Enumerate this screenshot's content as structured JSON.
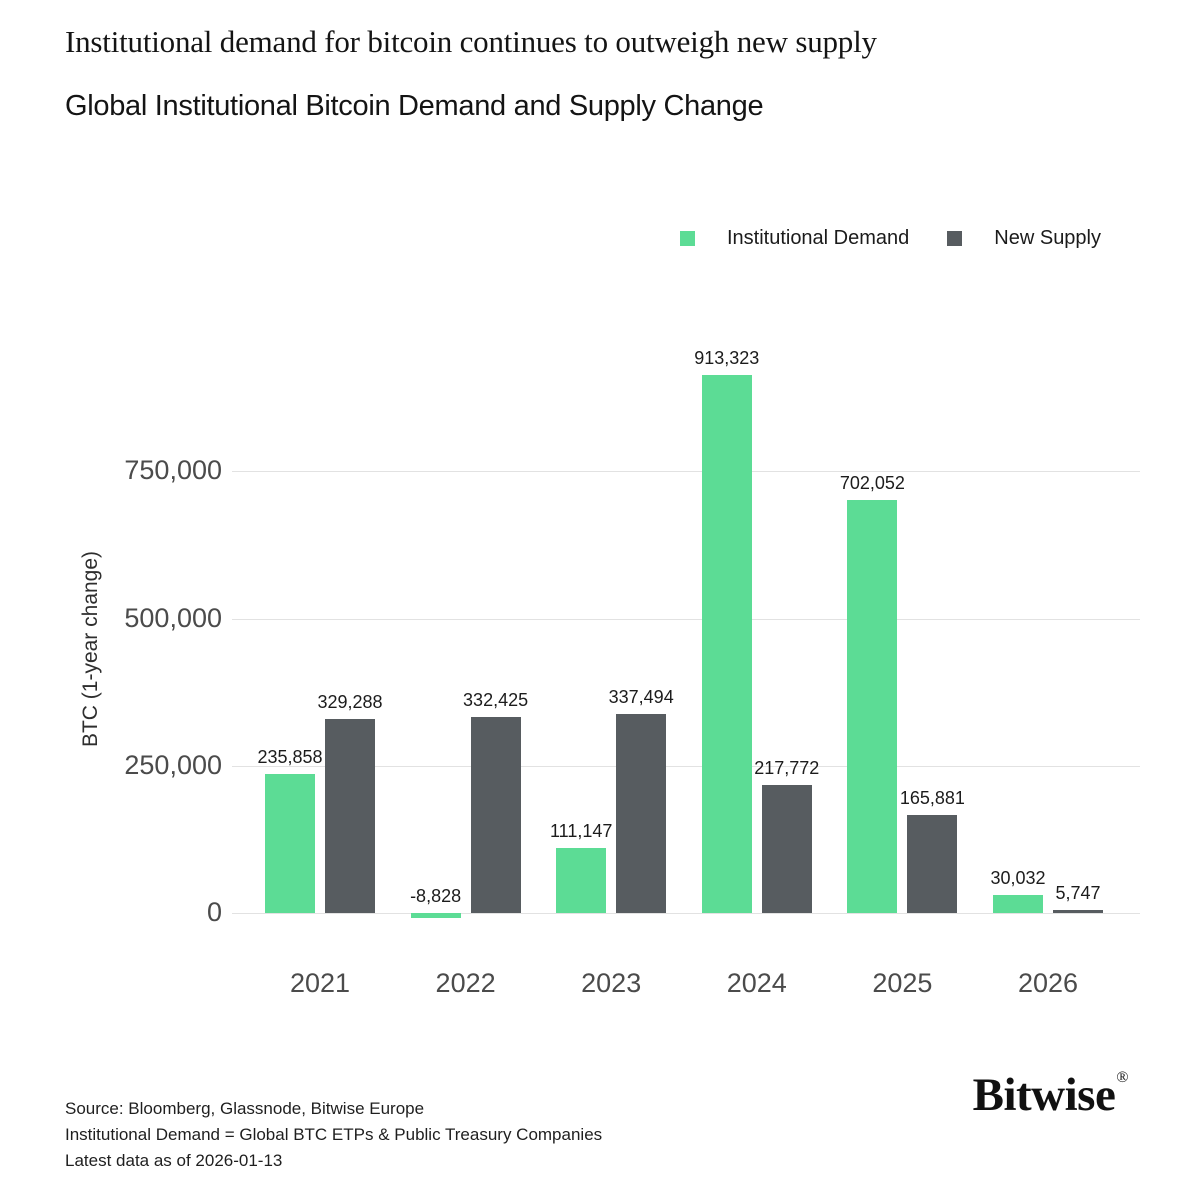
{
  "header": {
    "kicker": "Institutional demand for bitcoin continues to outweigh new supply",
    "title": "Global Institutional Bitcoin Demand and Supply Change"
  },
  "colors": {
    "demand_green": "#5CDC95",
    "supply_gray": "#575C60",
    "gridline": "#e2e2e2"
  },
  "chart_data": {
    "type": "bar",
    "categories": [
      "2021",
      "2022",
      "2023",
      "2024",
      "2025",
      "2026"
    ],
    "series": [
      {
        "name": "Institutional Demand",
        "color": "#5CDC95",
        "values": [
          235858,
          -8828,
          111147,
          913323,
          702052,
          30032
        ]
      },
      {
        "name": "New Supply",
        "color": "#575C60",
        "values": [
          329288,
          332425,
          337494,
          217772,
          165881,
          5747
        ]
      }
    ],
    "title": "Global Institutional Bitcoin Demand and Supply Change",
    "xlabel": "",
    "ylabel": "BTC (1-year change)",
    "yticks": [
      0,
      250000,
      500000,
      750000
    ],
    "ytick_labels": [
      "0",
      "250,000",
      "500,000",
      "750,000"
    ],
    "ylim": [
      0,
      990000
    ],
    "grid": true,
    "legend_position": "top-right",
    "value_labels": true
  },
  "footer": {
    "lines": [
      "Source: Bloomberg, Glassnode, Bitwise Europe",
      "Institutional Demand = Global BTC ETPs & Public Treasury Companies",
      "Latest data as of 2026-01-13"
    ],
    "logo_text": "Bitwise",
    "logo_mark": "®"
  }
}
